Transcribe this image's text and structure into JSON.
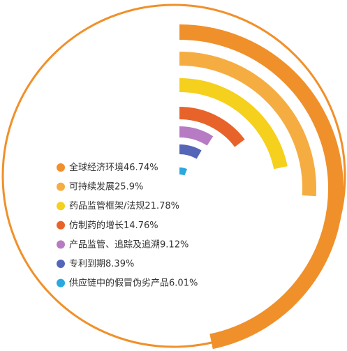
{
  "chart_data": {
    "type": "radial_bar",
    "categories": [
      "全球经济环境",
      "可持续发展",
      "药品监管框架/法规",
      "仿制药的增长",
      "产品监管、追踪及追溯",
      "专利到期",
      "供应链中的假冒伪劣产品"
    ],
    "values": [
      46.74,
      25.9,
      21.78,
      14.76,
      9.12,
      8.39,
      6.01
    ],
    "value_labels": [
      "46.74%",
      "25.9%",
      "21.78%",
      "14.76%",
      "9.12%",
      "8.39%",
      "6.01%"
    ],
    "colors": [
      "#f0902a",
      "#f5ad42",
      "#f5d01c",
      "#e8632a",
      "#b77bc4",
      "#5566b8",
      "#2aa8e0"
    ]
  }
}
